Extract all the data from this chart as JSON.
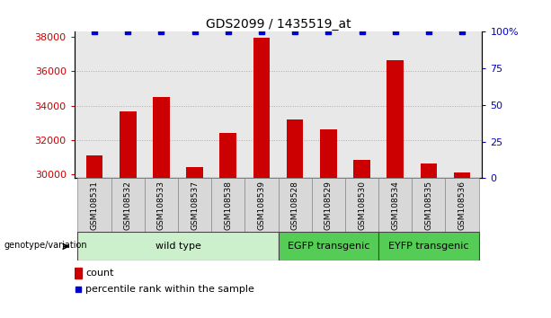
{
  "title": "GDS2099 / 1435519_at",
  "samples": [
    "GSM108531",
    "GSM108532",
    "GSM108533",
    "GSM108537",
    "GSM108538",
    "GSM108539",
    "GSM108528",
    "GSM108529",
    "GSM108530",
    "GSM108534",
    "GSM108535",
    "GSM108536"
  ],
  "counts": [
    31100,
    33700,
    34500,
    30450,
    32400,
    37950,
    33200,
    32650,
    30850,
    36650,
    30650,
    30100
  ],
  "percentiles": [
    100,
    100,
    100,
    100,
    100,
    100,
    100,
    100,
    100,
    100,
    100,
    100
  ],
  "ylim_left": [
    29800,
    38300
  ],
  "ylim_right": [
    0,
    100
  ],
  "yticks_left": [
    30000,
    32000,
    34000,
    36000,
    38000
  ],
  "yticks_right": [
    0,
    25,
    50,
    75,
    100
  ],
  "bar_color": "#cc0000",
  "dot_color": "#0000cc",
  "group_configs": [
    {
      "label": "wild type",
      "start": 0,
      "end": 6,
      "color": "#ccf0cc"
    },
    {
      "label": "EGFP transgenic",
      "start": 6,
      "end": 9,
      "color": "#55cc55"
    },
    {
      "label": "EYFP transgenic",
      "start": 9,
      "end": 12,
      "color": "#55cc55"
    }
  ],
  "xlabel_group": "genotype/variation",
  "legend_count_label": "count",
  "legend_pct_label": "percentile rank within the sample",
  "gridline_color": "#aaaaaa",
  "gridline_ticks": [
    32000,
    34000,
    36000
  ],
  "bar_width": 0.5,
  "plot_bg": "#e8e8e8",
  "tick_bg": "#c8c8c8"
}
